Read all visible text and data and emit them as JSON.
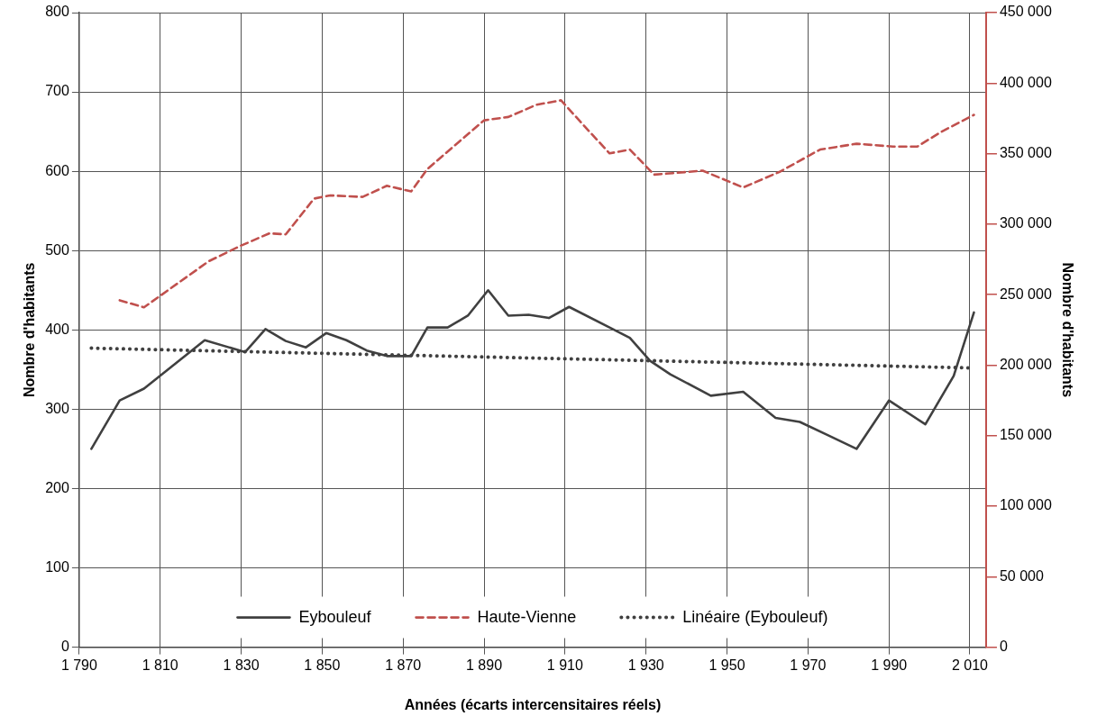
{
  "chart_data": {
    "type": "line",
    "xlabel": "Années (écarts intercensitaires réels)",
    "ylabel": "Nombre d'habitants",
    "y2label": "Nombre d'habitants",
    "xlim": [
      1790,
      2014
    ],
    "xticks": [
      {
        "value": 1790,
        "label": "1 790"
      },
      {
        "value": 1810,
        "label": "1 810"
      },
      {
        "value": 1830,
        "label": "1 830"
      },
      {
        "value": 1850,
        "label": "1 850"
      },
      {
        "value": 1870,
        "label": "1 870"
      },
      {
        "value": 1890,
        "label": "1 890"
      },
      {
        "value": 1910,
        "label": "1 910"
      },
      {
        "value": 1930,
        "label": "1 930"
      },
      {
        "value": 1950,
        "label": "1 950"
      },
      {
        "value": 1970,
        "label": "1 970"
      },
      {
        "value": 1990,
        "label": "1 990"
      },
      {
        "value": 2010,
        "label": "2 010"
      }
    ],
    "ylim": [
      0,
      800
    ],
    "yticks": [
      0,
      100,
      200,
      300,
      400,
      500,
      600,
      700,
      800
    ],
    "y2lim": [
      0,
      450000
    ],
    "y2ticks": [
      0,
      {
        "value": 50000,
        "label": "50 000"
      },
      {
        "value": 100000,
        "label": "100 000"
      },
      {
        "value": 150000,
        "label": "150 000"
      },
      {
        "value": 200000,
        "label": "200 000"
      },
      {
        "value": 250000,
        "label": "250 000"
      },
      {
        "value": 300000,
        "label": "300 000"
      },
      {
        "value": 350000,
        "label": "350 000"
      },
      {
        "value": 400000,
        "label": "400 000"
      },
      {
        "value": 450000,
        "label": "450 000"
      }
    ],
    "grid": true,
    "legend": "bottom",
    "series": [
      {
        "name": "Eybouleuf",
        "color": "#404040",
        "line_style": "solid",
        "x": [
          1793,
          1800,
          1806,
          1821,
          1831,
          1836,
          1841,
          1846,
          1851,
          1856,
          1861,
          1866,
          1872,
          1876,
          1881,
          1886,
          1891,
          1896,
          1901,
          1906,
          1911,
          1921,
          1926,
          1931,
          1936,
          1946,
          1954,
          1962,
          1968,
          1975,
          1982,
          1990,
          1999,
          2006,
          2011
        ],
        "values": [
          250,
          311,
          326,
          387,
          372,
          401,
          386,
          378,
          396,
          387,
          374,
          367,
          367,
          403,
          403,
          418,
          450,
          418,
          419,
          415,
          429,
          403,
          390,
          361,
          344,
          317,
          322,
          289,
          284,
          267,
          250,
          311,
          281,
          342,
          422
        ]
      },
      {
        "name": "Haute-Vienne",
        "color": "#c0504d",
        "line_style": "dashed",
        "axis": "y2",
        "x": [
          1800,
          1806,
          1822,
          1830,
          1837,
          1841,
          1848,
          1852,
          1860,
          1866,
          1872,
          1876,
          1884,
          1890,
          1896,
          1903,
          1909,
          1915,
          1921,
          1926,
          1932,
          1944,
          1954,
          1963,
          1973,
          1982,
          1991,
          1997,
          2003,
          2011
        ],
        "values": [
          246000,
          241000,
          273700,
          284800,
          293500,
          292700,
          318100,
          320400,
          319300,
          327200,
          323200,
          339100,
          358900,
          373600,
          376000,
          384700,
          387800,
          368800,
          350200,
          352900,
          335100,
          337900,
          326000,
          337100,
          352900,
          357000,
          355000,
          355000,
          365600,
          377500
        ]
      },
      {
        "name": "Linéaire (Eybouleuf)",
        "color": "#404040",
        "line_style": "dotted",
        "x": [
          1793,
          2011
        ],
        "values": [
          377,
          352
        ]
      }
    ]
  }
}
